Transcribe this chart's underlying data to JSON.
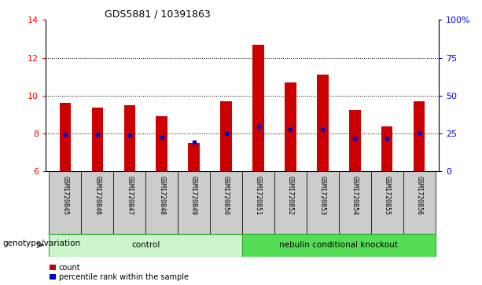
{
  "title": "GDS5881 / 10391863",
  "samples": [
    "GSM1720845",
    "GSM1720846",
    "GSM1720847",
    "GSM1720848",
    "GSM1720849",
    "GSM1720850",
    "GSM1720851",
    "GSM1720852",
    "GSM1720853",
    "GSM1720854",
    "GSM1720855",
    "GSM1720856"
  ],
  "count_values": [
    9.6,
    9.35,
    9.5,
    8.9,
    7.5,
    9.7,
    12.7,
    10.7,
    11.1,
    9.25,
    8.35,
    9.7
  ],
  "percentile_values": [
    7.95,
    7.95,
    7.9,
    7.78,
    7.55,
    7.97,
    8.35,
    8.2,
    8.2,
    7.75,
    7.72,
    8.05
  ],
  "bar_bottom": 6.0,
  "ylim_left": [
    6,
    14
  ],
  "ylim_right": [
    0,
    100
  ],
  "yticks_left": [
    6,
    8,
    10,
    12,
    14
  ],
  "yticks_right": [
    0,
    25,
    50,
    75,
    100
  ],
  "ytick_labels_right": [
    "0",
    "25",
    "50",
    "75",
    "100%"
  ],
  "groups": [
    {
      "label": "control",
      "n_samples": 6,
      "color": "#ccf5cc",
      "border_color": "#33aa33"
    },
    {
      "label": "nebulin conditional knockout",
      "n_samples": 6,
      "color": "#55dd55",
      "border_color": "#33aa33"
    }
  ],
  "group_label": "genotype/variation",
  "bar_color": "#cc0000",
  "percentile_color": "#0000cc",
  "bar_width": 0.35,
  "gridline_ticks": [
    8,
    10,
    12
  ],
  "left_tick_color": "red",
  "right_tick_color": "blue",
  "tick_fontsize": 8,
  "title_fontsize": 9,
  "legend_fontsize": 7,
  "sample_cell_color": "#cccccc",
  "sample_label_fontsize": 6
}
